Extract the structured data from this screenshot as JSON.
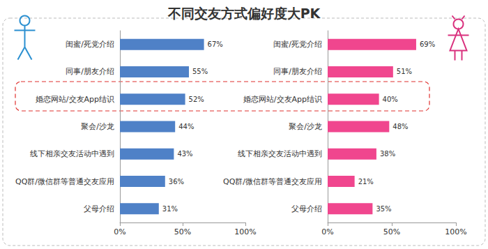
{
  "chart_data": [
    {
      "type": "bar",
      "title": "不同交友方式偏好度大PK",
      "orientation": "horizontal",
      "categories": [
        "闺蜜/死党介绍",
        "同事/朋友介绍",
        "婚恋网站/交友App结识",
        "聚会/沙龙",
        "线下相亲交友活动中遇到",
        "QQ群/微信群等普通交友应用",
        "父母介绍"
      ],
      "values": [
        67,
        55,
        52,
        44,
        43,
        36,
        31
      ],
      "value_labels": [
        "67%",
        "55%",
        "52%",
        "44%",
        "43%",
        "36%",
        "31%"
      ],
      "color": "#4f81c7",
      "xlim": [
        0,
        100
      ],
      "xticks": [
        {
          "value": 0,
          "label": "0%"
        },
        {
          "value": 50,
          "label": "50%"
        },
        {
          "value": 100,
          "label": "100%"
        }
      ],
      "grid": false,
      "data_labels": true
    },
    {
      "type": "bar",
      "orientation": "horizontal",
      "categories": [
        "闺蜜/死党介绍",
        "同事/朋友介绍",
        "婚恋网站/交友App结识",
        "聚会/沙龙",
        "线下相亲交友活动中遇到",
        "QQ群/微信群等普通交友应用",
        "父母介绍"
      ],
      "values": [
        69,
        51,
        40,
        48,
        38,
        21,
        35
      ],
      "value_labels": [
        "69%",
        "51%",
        "40%",
        "48%",
        "38%",
        "21%",
        "35%"
      ],
      "color": "#f0468e",
      "xlim": [
        0,
        100
      ],
      "xticks": [
        {
          "value": 0,
          "label": "0%"
        },
        {
          "value": 50,
          "label": "50%"
        },
        {
          "value": 100,
          "label": "100%"
        }
      ],
      "grid": false,
      "data_labels": true
    }
  ]
}
